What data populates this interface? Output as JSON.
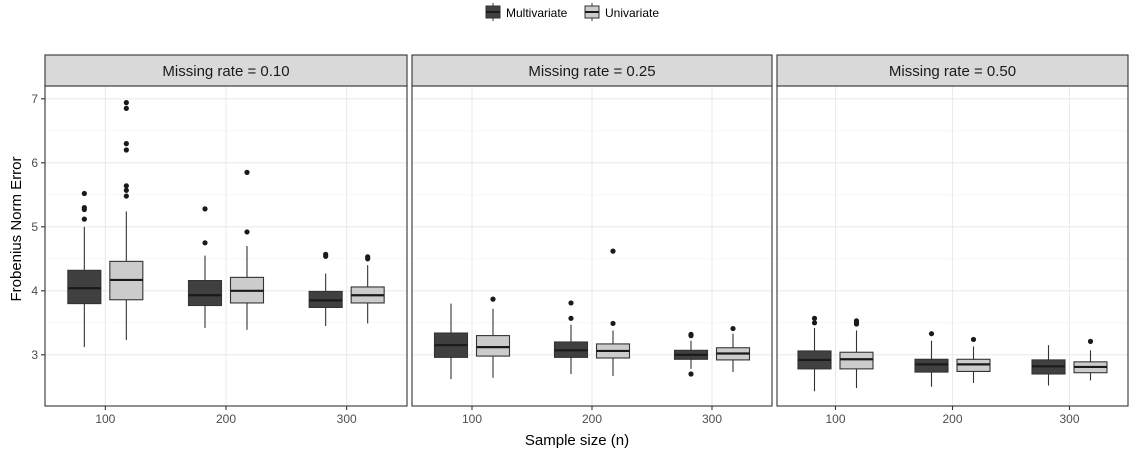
{
  "chart_data": {
    "type": "box",
    "xlabel": "Sample size (n)",
    "ylabel": "Frobenius Norm Error",
    "ylim": [
      2.2,
      7.2
    ],
    "yticks": [
      3,
      4,
      5,
      6,
      7
    ],
    "categories": [
      "100",
      "200",
      "300"
    ],
    "legend": {
      "position": "top",
      "entries": [
        {
          "name": "Multivariate",
          "color": "#404040"
        },
        {
          "name": "Univariate",
          "color": "#cccccc"
        }
      ]
    },
    "grid": true,
    "panels": [
      {
        "label": "Missing rate = 0.10",
        "groups": [
          {
            "x": "100",
            "series": "Multivariate",
            "min": 3.12,
            "q1": 3.8,
            "median": 4.04,
            "q3": 4.32,
            "max": 5.0,
            "outliers": [
              5.12,
              5.27,
              5.3,
              5.52
            ]
          },
          {
            "x": "100",
            "series": "Univariate",
            "min": 3.23,
            "q1": 3.86,
            "median": 4.17,
            "q3": 4.46,
            "max": 5.24,
            "outliers": [
              5.48,
              5.57,
              5.64,
              6.2,
              6.3,
              6.85,
              6.94
            ]
          },
          {
            "x": "200",
            "series": "Multivariate",
            "min": 3.42,
            "q1": 3.77,
            "median": 3.93,
            "q3": 4.16,
            "max": 4.55,
            "outliers": [
              4.75,
              5.28
            ]
          },
          {
            "x": "200",
            "series": "Univariate",
            "min": 3.39,
            "q1": 3.81,
            "median": 4.0,
            "q3": 4.21,
            "max": 4.7,
            "outliers": [
              4.92,
              5.85
            ]
          },
          {
            "x": "300",
            "series": "Multivariate",
            "min": 3.45,
            "q1": 3.74,
            "median": 3.85,
            "q3": 3.99,
            "max": 4.27,
            "outliers": [
              4.54,
              4.57
            ]
          },
          {
            "x": "300",
            "series": "Univariate",
            "min": 3.49,
            "q1": 3.81,
            "median": 3.93,
            "q3": 4.06,
            "max": 4.4,
            "outliers": [
              4.5,
              4.53
            ]
          }
        ]
      },
      {
        "label": "Missing rate = 0.25",
        "groups": [
          {
            "x": "100",
            "series": "Multivariate",
            "min": 2.62,
            "q1": 2.96,
            "median": 3.15,
            "q3": 3.34,
            "max": 3.8,
            "outliers": []
          },
          {
            "x": "100",
            "series": "Univariate",
            "min": 2.64,
            "q1": 2.98,
            "median": 3.12,
            "q3": 3.3,
            "max": 3.72,
            "outliers": [
              3.87
            ]
          },
          {
            "x": "200",
            "series": "Multivariate",
            "min": 2.7,
            "q1": 2.96,
            "median": 3.07,
            "q3": 3.2,
            "max": 3.47,
            "outliers": [
              3.57,
              3.81
            ]
          },
          {
            "x": "200",
            "series": "Univariate",
            "min": 2.67,
            "q1": 2.95,
            "median": 3.06,
            "q3": 3.17,
            "max": 3.38,
            "outliers": [
              3.49,
              4.62
            ]
          },
          {
            "x": "300",
            "series": "Multivariate",
            "min": 2.78,
            "q1": 2.93,
            "median": 3.0,
            "q3": 3.07,
            "max": 3.22,
            "outliers": [
              2.7,
              3.3,
              3.32
            ]
          },
          {
            "x": "300",
            "series": "Univariate",
            "min": 2.73,
            "q1": 2.92,
            "median": 3.02,
            "q3": 3.11,
            "max": 3.33,
            "outliers": [
              3.41
            ]
          }
        ]
      },
      {
        "label": "Missing rate = 0.50",
        "groups": [
          {
            "x": "100",
            "series": "Multivariate",
            "min": 2.43,
            "q1": 2.78,
            "median": 2.92,
            "q3": 3.06,
            "max": 3.42,
            "outliers": [
              3.5,
              3.57
            ]
          },
          {
            "x": "100",
            "series": "Univariate",
            "min": 2.48,
            "q1": 2.78,
            "median": 2.93,
            "q3": 3.04,
            "max": 3.38,
            "outliers": [
              3.48,
              3.51,
              3.53
            ]
          },
          {
            "x": "200",
            "series": "Multivariate",
            "min": 2.5,
            "q1": 2.73,
            "median": 2.85,
            "q3": 2.93,
            "max": 3.22,
            "outliers": [
              3.33
            ]
          },
          {
            "x": "200",
            "series": "Univariate",
            "min": 2.56,
            "q1": 2.74,
            "median": 2.85,
            "q3": 2.93,
            "max": 3.13,
            "outliers": [
              3.24
            ]
          },
          {
            "x": "300",
            "series": "Multivariate",
            "min": 2.52,
            "q1": 2.7,
            "median": 2.82,
            "q3": 2.92,
            "max": 3.15,
            "outliers": []
          },
          {
            "x": "300",
            "series": "Univariate",
            "min": 2.6,
            "q1": 2.72,
            "median": 2.81,
            "q3": 2.89,
            "max": 3.07,
            "outliers": [
              3.21
            ]
          }
        ]
      }
    ]
  }
}
